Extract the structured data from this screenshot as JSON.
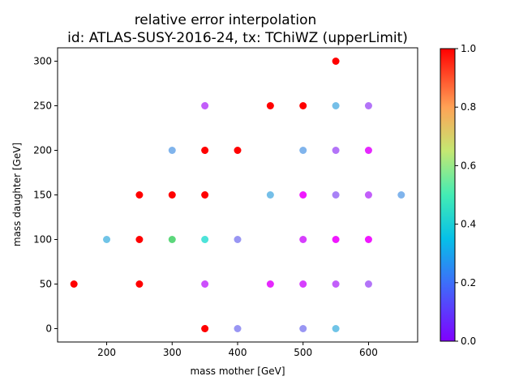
{
  "chart_data": {
    "type": "scatter",
    "title": "relative error interpolation",
    "subtitle": "id: ATLAS-SUSY-2016-24, tx: TChiWZ (upperLimit)",
    "xlabel": "mass mother [GeV]",
    "ylabel": "mass daughter [GeV]",
    "xlim": [
      125,
      675
    ],
    "ylim": [
      -15,
      315
    ],
    "xticks": [
      200,
      300,
      400,
      500,
      600
    ],
    "yticks": [
      0,
      50,
      100,
      150,
      200,
      250,
      300
    ],
    "colorbar": {
      "range": [
        0.0,
        1.0
      ],
      "ticks": [
        0.0,
        0.2,
        0.4,
        0.6,
        0.8,
        1.0
      ],
      "ticklabels": [
        "0.0",
        "0.2",
        "0.4",
        "0.6",
        "0.8",
        "1.0"
      ],
      "colormap": "rainbow"
    },
    "grid": false,
    "points": [
      {
        "x": 150,
        "y": 50,
        "v": 1.0
      },
      {
        "x": 200,
        "y": 100,
        "v": 0.28
      },
      {
        "x": 250,
        "y": 50,
        "v": 1.0
      },
      {
        "x": 250,
        "y": 100,
        "v": 1.0
      },
      {
        "x": 250,
        "y": 150,
        "v": 1.0
      },
      {
        "x": 300,
        "y": 100,
        "v": 0.68
      },
      {
        "x": 300,
        "y": 150,
        "v": 1.0
      },
      {
        "x": 300,
        "y": 200,
        "v": 0.25
      },
      {
        "x": 350,
        "y": 0,
        "v": 1.0
      },
      {
        "x": 350,
        "y": 50,
        "v": 0.1
      },
      {
        "x": 350,
        "y": 100,
        "v": 0.35
      },
      {
        "x": 350,
        "y": 150,
        "v": 1.0
      },
      {
        "x": 350,
        "y": 200,
        "v": 1.0
      },
      {
        "x": 350,
        "y": 250,
        "v": 0.12
      },
      {
        "x": 400,
        "y": 0,
        "v": 0.2
      },
      {
        "x": 400,
        "y": 100,
        "v": 0.2
      },
      {
        "x": 400,
        "y": 200,
        "v": 1.0
      },
      {
        "x": 450,
        "y": 50,
        "v": 0.05
      },
      {
        "x": 450,
        "y": 150,
        "v": 0.27
      },
      {
        "x": 450,
        "y": 250,
        "v": 1.0
      },
      {
        "x": 500,
        "y": 0,
        "v": 0.2
      },
      {
        "x": 500,
        "y": 50,
        "v": 0.08
      },
      {
        "x": 500,
        "y": 100,
        "v": 0.08
      },
      {
        "x": 500,
        "y": 150,
        "v": 0.03
      },
      {
        "x": 500,
        "y": 200,
        "v": 0.25
      },
      {
        "x": 500,
        "y": 250,
        "v": 1.0
      },
      {
        "x": 550,
        "y": 0,
        "v": 0.28
      },
      {
        "x": 550,
        "y": 50,
        "v": 0.12
      },
      {
        "x": 550,
        "y": 100,
        "v": 0.03
      },
      {
        "x": 550,
        "y": 150,
        "v": 0.17
      },
      {
        "x": 550,
        "y": 200,
        "v": 0.15
      },
      {
        "x": 550,
        "y": 250,
        "v": 0.27
      },
      {
        "x": 550,
        "y": 300,
        "v": 1.0
      },
      {
        "x": 600,
        "y": 50,
        "v": 0.15
      },
      {
        "x": 600,
        "y": 100,
        "v": 0.03
      },
      {
        "x": 600,
        "y": 150,
        "v": 0.12
      },
      {
        "x": 600,
        "y": 200,
        "v": 0.05
      },
      {
        "x": 600,
        "y": 250,
        "v": 0.15
      },
      {
        "x": 650,
        "y": 150,
        "v": 0.25
      }
    ]
  }
}
